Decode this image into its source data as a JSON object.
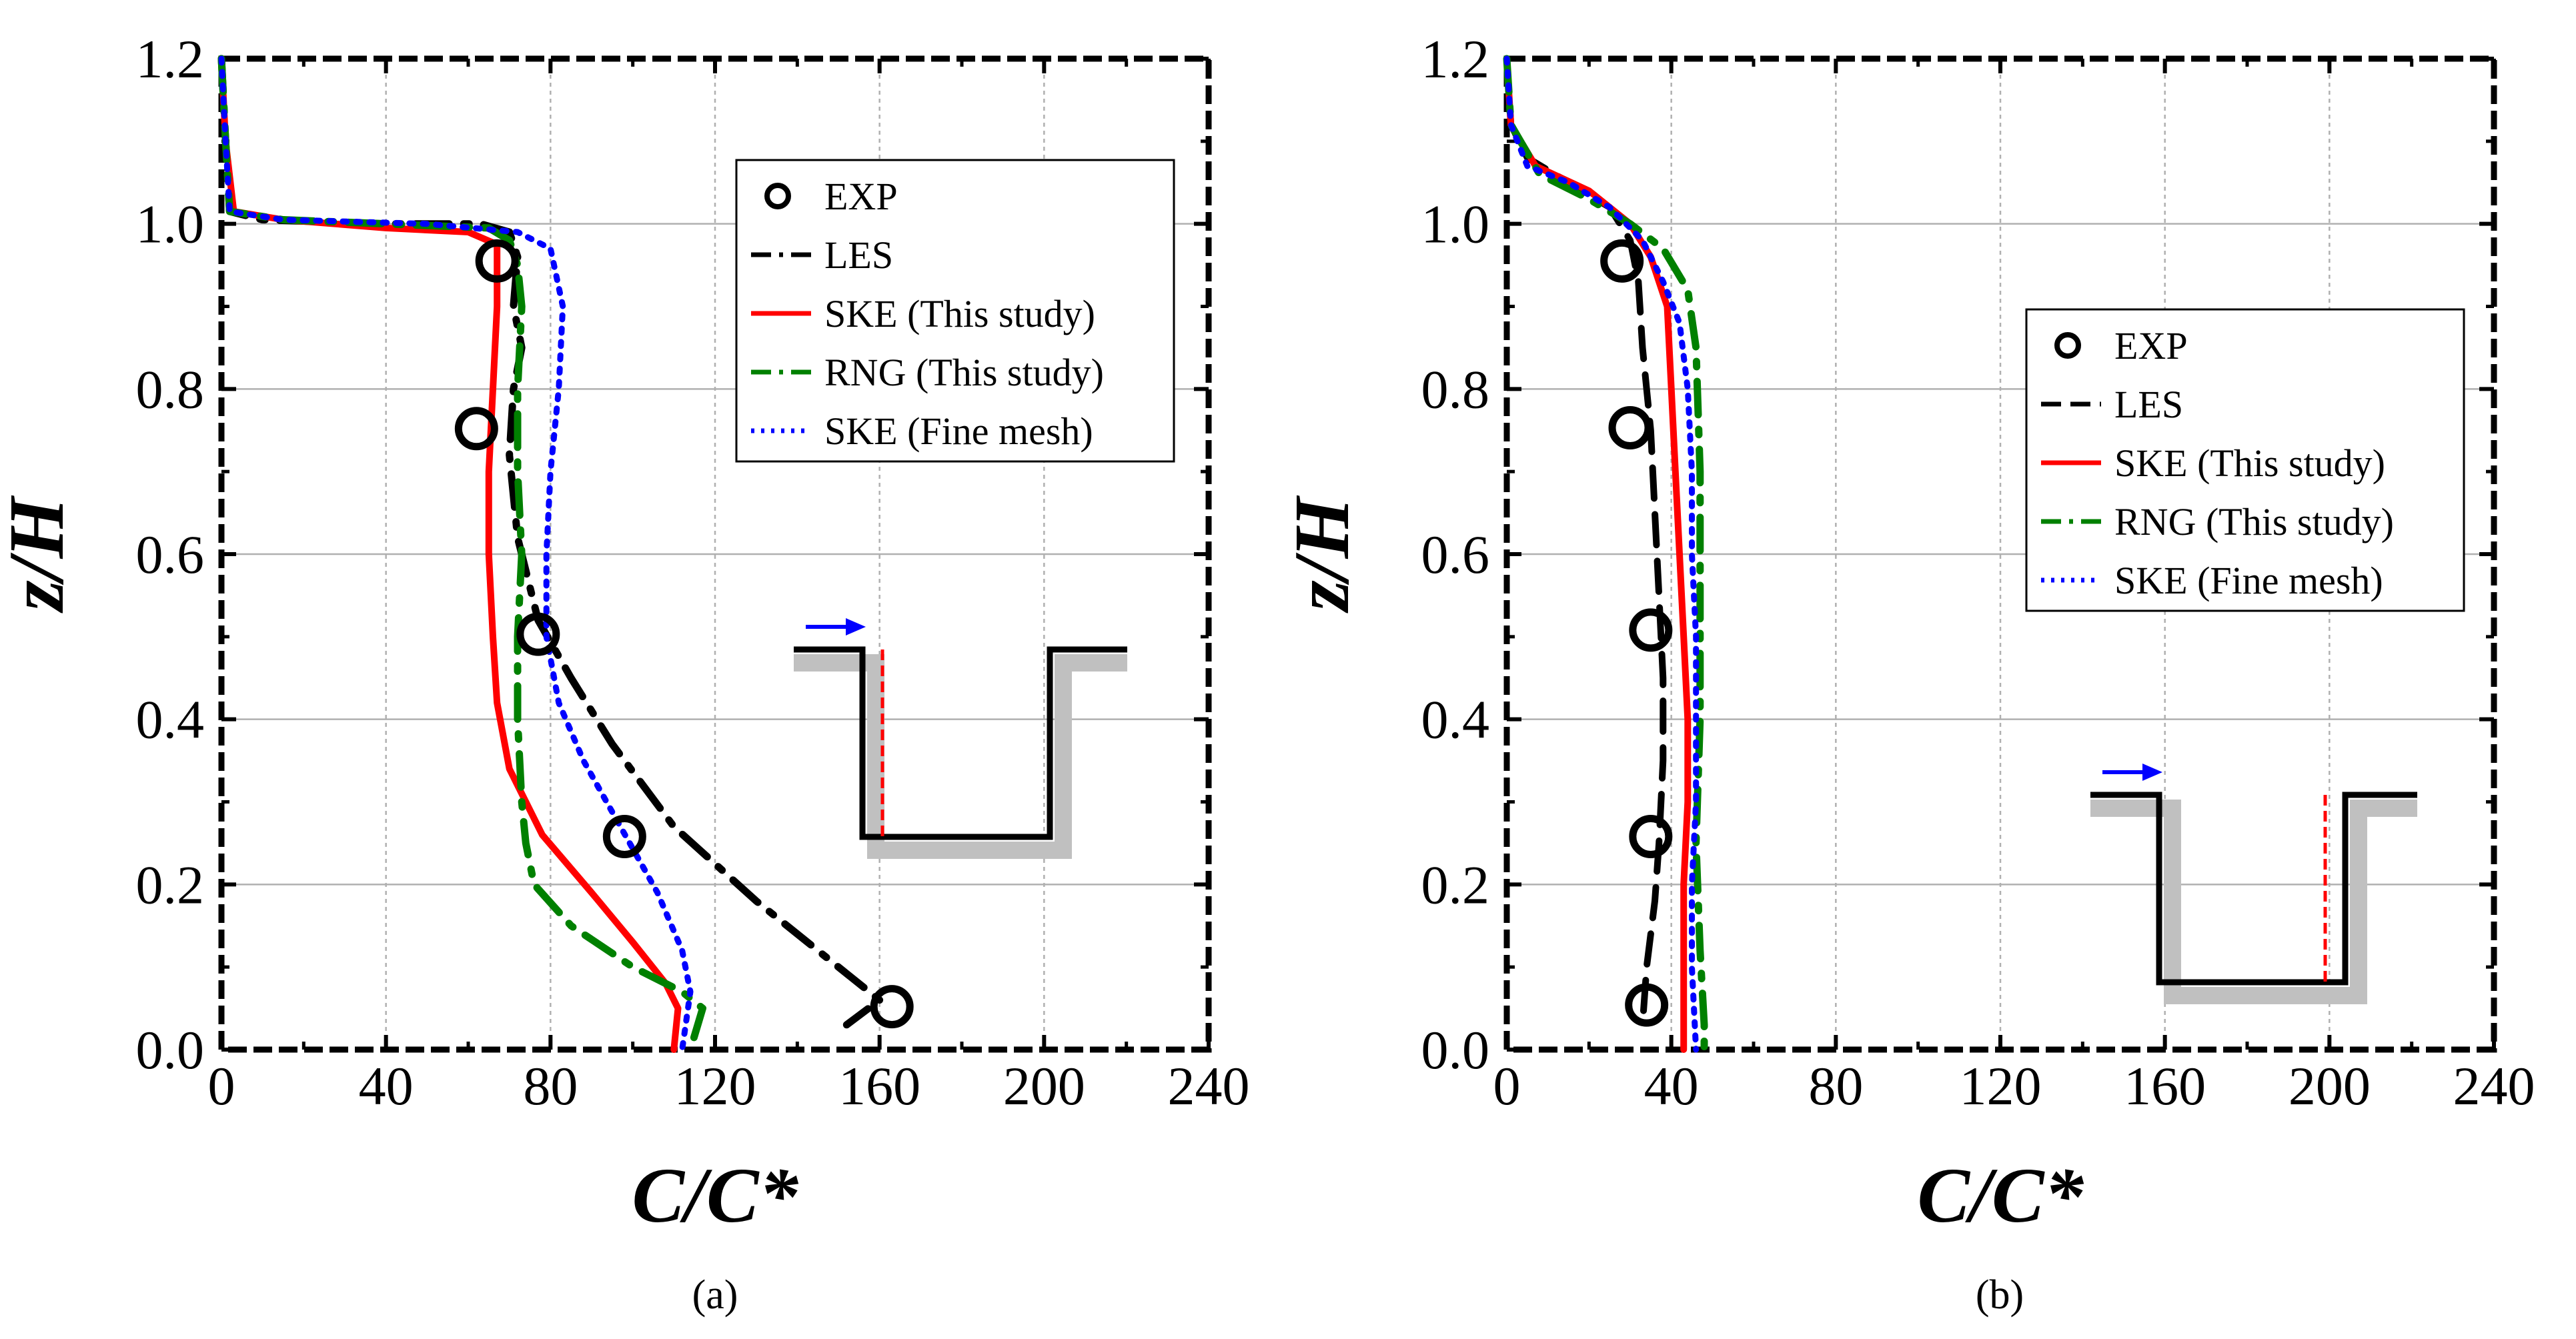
{
  "figure": {
    "panel_labels": [
      "(a)",
      "(b)"
    ]
  },
  "colors": {
    "exp": "#000000",
    "les": "#000000",
    "ske": "#ff0000",
    "rng": "#008000",
    "fine": "#0000ff",
    "grid": "#b0b0b0",
    "inset_shadow": "#c0c0c0",
    "inset_arrow": "#0000ff",
    "inset_line": "#ff0000"
  },
  "chart_data": [
    {
      "type": "line",
      "panel": "(a)",
      "xlabel": "C/C*",
      "ylabel": "z/H",
      "xlim": [
        0,
        240
      ],
      "ylim": [
        0,
        1.2
      ],
      "xticks": [
        0,
        40,
        80,
        120,
        160,
        200,
        240
      ],
      "xtick_labels": [
        "0",
        "40",
        "80",
        "120",
        "160",
        "200",
        "240"
      ],
      "yticks": [
        0,
        0.2,
        0.4,
        0.6,
        0.8,
        1.0,
        1.2
      ],
      "ytick_labels": [
        "0.0",
        "0.2",
        "0.4",
        "0.6",
        "0.8",
        "1.0",
        "1.2"
      ],
      "grid": true,
      "legend_position": "top-right",
      "legend": [
        "EXP",
        "LES",
        "SKE (This study)",
        "RNG (This study)",
        "SKE (Fine mesh)"
      ],
      "inset": "cavity with monitoring line near upstream (left) wall",
      "series": [
        {
          "name": "EXP",
          "style": "marker",
          "points": [
            [
              67,
              0.955
            ],
            [
              62,
              0.752
            ],
            [
              77,
              0.503
            ],
            [
              98,
              0.258
            ],
            [
              163,
              0.052
            ]
          ]
        },
        {
          "name": "LES",
          "style": "dashdot",
          "points": [
            [
              0,
              1.2
            ],
            [
              1,
              1.1
            ],
            [
              2,
              1.015
            ],
            [
              10,
              1.005
            ],
            [
              40,
              1.0
            ],
            [
              63,
              1.0
            ],
            [
              70,
              0.99
            ],
            [
              72,
              0.96
            ],
            [
              71,
              0.9
            ],
            [
              73,
              0.85
            ],
            [
              71,
              0.8
            ],
            [
              70,
              0.72
            ],
            [
              72,
              0.62
            ],
            [
              77,
              0.52
            ],
            [
              85,
              0.45
            ],
            [
              95,
              0.37
            ],
            [
              110,
              0.27
            ],
            [
              130,
              0.18
            ],
            [
              150,
              0.1
            ],
            [
              160,
              0.06
            ],
            [
              152,
              0.03
            ]
          ]
        },
        {
          "name": "SKE (This study)",
          "style": "solid",
          "points": [
            [
              0,
              1.2
            ],
            [
              1,
              1.1
            ],
            [
              3,
              1.015
            ],
            [
              15,
              1.005
            ],
            [
              40,
              0.995
            ],
            [
              60,
              0.99
            ],
            [
              67,
              0.975
            ],
            [
              67,
              0.9
            ],
            [
              66,
              0.8
            ],
            [
              65,
              0.7
            ],
            [
              65,
              0.6
            ],
            [
              66,
              0.5
            ],
            [
              67,
              0.42
            ],
            [
              70,
              0.34
            ],
            [
              78,
              0.26
            ],
            [
              90,
              0.19
            ],
            [
              100,
              0.13
            ],
            [
              108,
              0.08
            ],
            [
              111,
              0.05
            ],
            [
              110,
              0.0
            ]
          ]
        },
        {
          "name": "RNG (This study)",
          "style": "dashdot",
          "points": [
            [
              0,
              1.2
            ],
            [
              1,
              1.1
            ],
            [
              2,
              1.015
            ],
            [
              15,
              1.005
            ],
            [
              40,
              1.0
            ],
            [
              65,
              0.995
            ],
            [
              70,
              0.98
            ],
            [
              72,
              0.95
            ],
            [
              73,
              0.9
            ],
            [
              72,
              0.8
            ],
            [
              72,
              0.7
            ],
            [
              73,
              0.6
            ],
            [
              72,
              0.5
            ],
            [
              72,
              0.4
            ],
            [
              73,
              0.3
            ],
            [
              74,
              0.25
            ],
            [
              76,
              0.2
            ],
            [
              85,
              0.15
            ],
            [
              100,
              0.1
            ],
            [
              112,
              0.07
            ],
            [
              117,
              0.05
            ],
            [
              114,
              0.0
            ]
          ]
        },
        {
          "name": "SKE (Fine mesh)",
          "style": "dotted",
          "points": [
            [
              0,
              1.2
            ],
            [
              1,
              1.1
            ],
            [
              2,
              1.015
            ],
            [
              15,
              1.005
            ],
            [
              50,
              1.0
            ],
            [
              72,
              0.99
            ],
            [
              80,
              0.97
            ],
            [
              83,
              0.9
            ],
            [
              82,
              0.8
            ],
            [
              80,
              0.7
            ],
            [
              79,
              0.6
            ],
            [
              79,
              0.5
            ],
            [
              82,
              0.42
            ],
            [
              88,
              0.35
            ],
            [
              97,
              0.27
            ],
            [
              106,
              0.19
            ],
            [
              112,
              0.12
            ],
            [
              114,
              0.07
            ],
            [
              112,
              0.0
            ]
          ]
        }
      ]
    },
    {
      "type": "line",
      "panel": "(b)",
      "xlabel": "C/C*",
      "ylabel": "z/H",
      "xlim": [
        0,
        240
      ],
      "ylim": [
        0,
        1.2
      ],
      "xticks": [
        0,
        40,
        80,
        120,
        160,
        200,
        240
      ],
      "xtick_labels": [
        "0",
        "40",
        "80",
        "120",
        "160",
        "200",
        "240"
      ],
      "yticks": [
        0,
        0.2,
        0.4,
        0.6,
        0.8,
        1.0,
        1.2
      ],
      "ytick_labels": [
        "0.0",
        "0.2",
        "0.4",
        "0.6",
        "0.8",
        "1.0",
        "1.2"
      ],
      "grid": true,
      "legend_position": "right",
      "legend": [
        "EXP",
        "LES",
        "SKE (This study)",
        "RNG (This study)",
        "SKE (Fine mesh)"
      ],
      "inset": "cavity with monitoring line near downstream (right) wall",
      "series": [
        {
          "name": "EXP",
          "style": "marker",
          "points": [
            [
              28,
              0.955
            ],
            [
              30,
              0.753
            ],
            [
              35,
              0.508
            ],
            [
              35,
              0.258
            ],
            [
              34,
              0.054
            ]
          ]
        },
        {
          "name": "LES",
          "style": "dashed",
          "points": [
            [
              0,
              1.2
            ],
            [
              1,
              1.12
            ],
            [
              5,
              1.08
            ],
            [
              15,
              1.05
            ],
            [
              25,
              1.02
            ],
            [
              30,
              0.98
            ],
            [
              32,
              0.93
            ],
            [
              33,
              0.85
            ],
            [
              35,
              0.75
            ],
            [
              36,
              0.65
            ],
            [
              37,
              0.55
            ],
            [
              38,
              0.45
            ],
            [
              38,
              0.35
            ],
            [
              37,
              0.25
            ],
            [
              36,
              0.18
            ],
            [
              34,
              0.1
            ],
            [
              33,
              0.03
            ]
          ]
        },
        {
          "name": "SKE (This study)",
          "style": "solid",
          "points": [
            [
              0,
              1.2
            ],
            [
              1,
              1.12
            ],
            [
              7,
              1.07
            ],
            [
              20,
              1.04
            ],
            [
              30,
              1.0
            ],
            [
              35,
              0.96
            ],
            [
              39,
              0.9
            ],
            [
              40,
              0.8
            ],
            [
              41,
              0.7
            ],
            [
              42,
              0.6
            ],
            [
              43,
              0.5
            ],
            [
              44,
              0.4
            ],
            [
              44,
              0.3
            ],
            [
              43,
              0.2
            ],
            [
              43,
              0.1
            ],
            [
              43,
              0.0
            ]
          ]
        },
        {
          "name": "RNG (This study)",
          "style": "dashdot",
          "points": [
            [
              0,
              1.2
            ],
            [
              1,
              1.12
            ],
            [
              8,
              1.06
            ],
            [
              20,
              1.03
            ],
            [
              30,
              1.0
            ],
            [
              38,
              0.97
            ],
            [
              44,
              0.92
            ],
            [
              46,
              0.85
            ],
            [
              47,
              0.7
            ],
            [
              47,
              0.55
            ],
            [
              47,
              0.4
            ],
            [
              46,
              0.25
            ],
            [
              47,
              0.12
            ],
            [
              48,
              0.03
            ],
            [
              48,
              0.0
            ]
          ]
        },
        {
          "name": "SKE (Fine mesh)",
          "style": "dotted",
          "points": [
            [
              0,
              1.2
            ],
            [
              1,
              1.12
            ],
            [
              5,
              1.07
            ],
            [
              15,
              1.05
            ],
            [
              25,
              1.02
            ],
            [
              33,
              0.98
            ],
            [
              38,
              0.93
            ],
            [
              42,
              0.88
            ],
            [
              44,
              0.8
            ],
            [
              45,
              0.7
            ],
            [
              45,
              0.6
            ],
            [
              46,
              0.5
            ],
            [
              46,
              0.4
            ],
            [
              46,
              0.3
            ],
            [
              45,
              0.2
            ],
            [
              45,
              0.1
            ],
            [
              46,
              0.0
            ]
          ]
        }
      ]
    }
  ]
}
